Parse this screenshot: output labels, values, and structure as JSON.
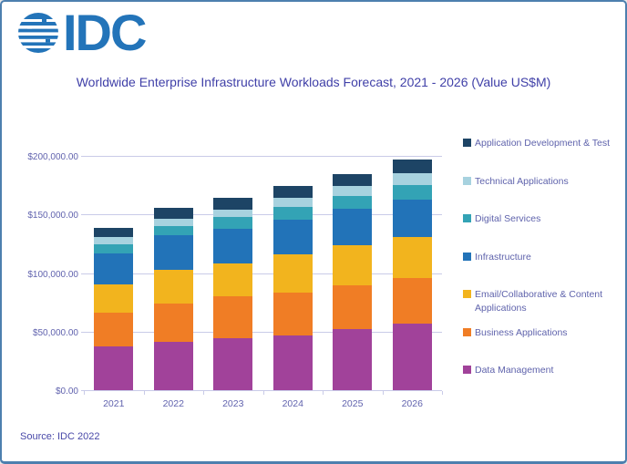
{
  "header": {
    "logo_text": "IDC"
  },
  "footer": {
    "source": "Source: IDC 2022"
  },
  "colors": {
    "logo_blue": "#2374b9",
    "frame_border": "#4d7fae",
    "gridline": "#c9cbe8",
    "title_text": "#4040a8",
    "axis_text": "#6163ae",
    "legend_text": "#5f63ac"
  },
  "chart_data": {
    "type": "bar",
    "stacked": true,
    "title": "Worldwide Enterprise Infrastructure Workloads Forecast, 2021 - 2026 (Value US$M)",
    "categories": [
      "2021",
      "2022",
      "2023",
      "2024",
      "2025",
      "2026"
    ],
    "legend_position": "right",
    "grid": true,
    "y_axis": {
      "min": 0,
      "max": 200000,
      "tick_step": 50000,
      "ticks": [
        {
          "value": 0,
          "label": "$0.00"
        },
        {
          "value": 50000,
          "label": "$50,000.00"
        },
        {
          "value": 100000,
          "label": "$100,000.00"
        },
        {
          "value": 150000,
          "label": "$150,000.00"
        },
        {
          "value": 200000,
          "label": "$200,000.00"
        }
      ]
    },
    "series": [
      {
        "name": "Application Development & Test",
        "color": "#1d4465",
        "values": [
          7500,
          9500,
          10000,
          10300,
          10500,
          11800
        ]
      },
      {
        "name": "Technical Applications",
        "color": "#a7d2df",
        "values": [
          6500,
          6500,
          6500,
          7800,
          8300,
          9700
        ]
      },
      {
        "name": "Digital Services",
        "color": "#33a3b5",
        "values": [
          7200,
          7300,
          10500,
          11000,
          11500,
          13000
        ]
      },
      {
        "name": "Infrastructure",
        "color": "#2273b8",
        "values": [
          26500,
          30000,
          29000,
          29500,
          31000,
          32000
        ]
      },
      {
        "name": "Email/Collaborative & Content Applications",
        "color": "#f2b41e",
        "values": [
          24500,
          28500,
          28500,
          32500,
          34000,
          34500
        ]
      },
      {
        "name": "Business Applications",
        "color": "#f07d25",
        "values": [
          29000,
          33000,
          35500,
          36500,
          37500,
          39500
        ]
      },
      {
        "name": "Data Management",
        "color": "#a1429a",
        "values": [
          37000,
          41000,
          44500,
          47000,
          52000,
          56500
        ]
      }
    ]
  }
}
